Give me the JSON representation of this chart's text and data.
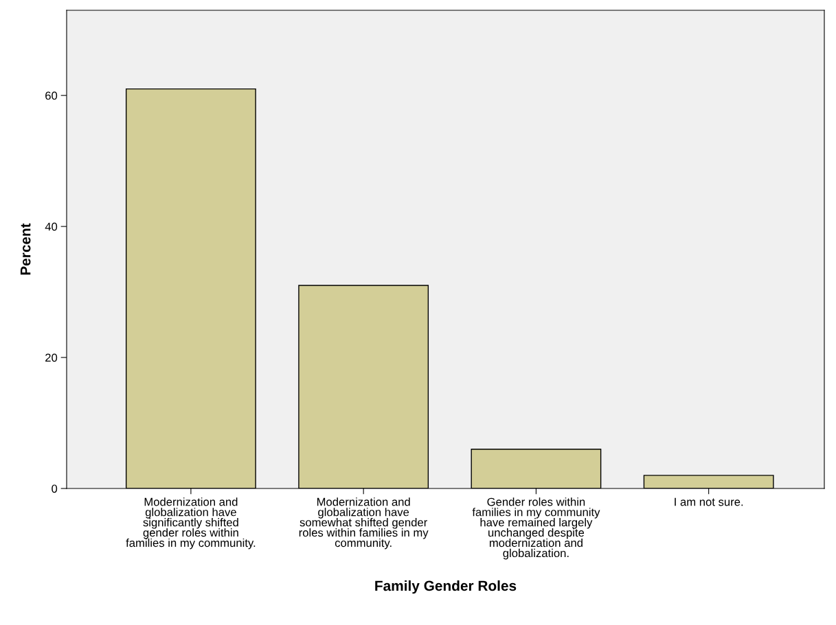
{
  "chart_data": {
    "type": "bar",
    "xlabel": "Family Gender Roles",
    "ylabel": "Percent",
    "categories": [
      "Modernization and\nglobalization have\nsignificantly shifted\ngender roles within\nfamilies in my community.",
      "Modernization and\nglobalization have\nsomewhat shifted gender\nroles within families in my\ncommunity.",
      "Gender roles within\nfamilies in my community\nhave remained largely\nunchanged despite\nmodernization and\nglobalization.",
      "I am not sure."
    ],
    "values": [
      61,
      31,
      6,
      2
    ],
    "color": "#d3ce97",
    "ylim": [
      0,
      73
    ],
    "yticks": [
      0,
      20,
      40,
      60
    ],
    "grid": false
  }
}
